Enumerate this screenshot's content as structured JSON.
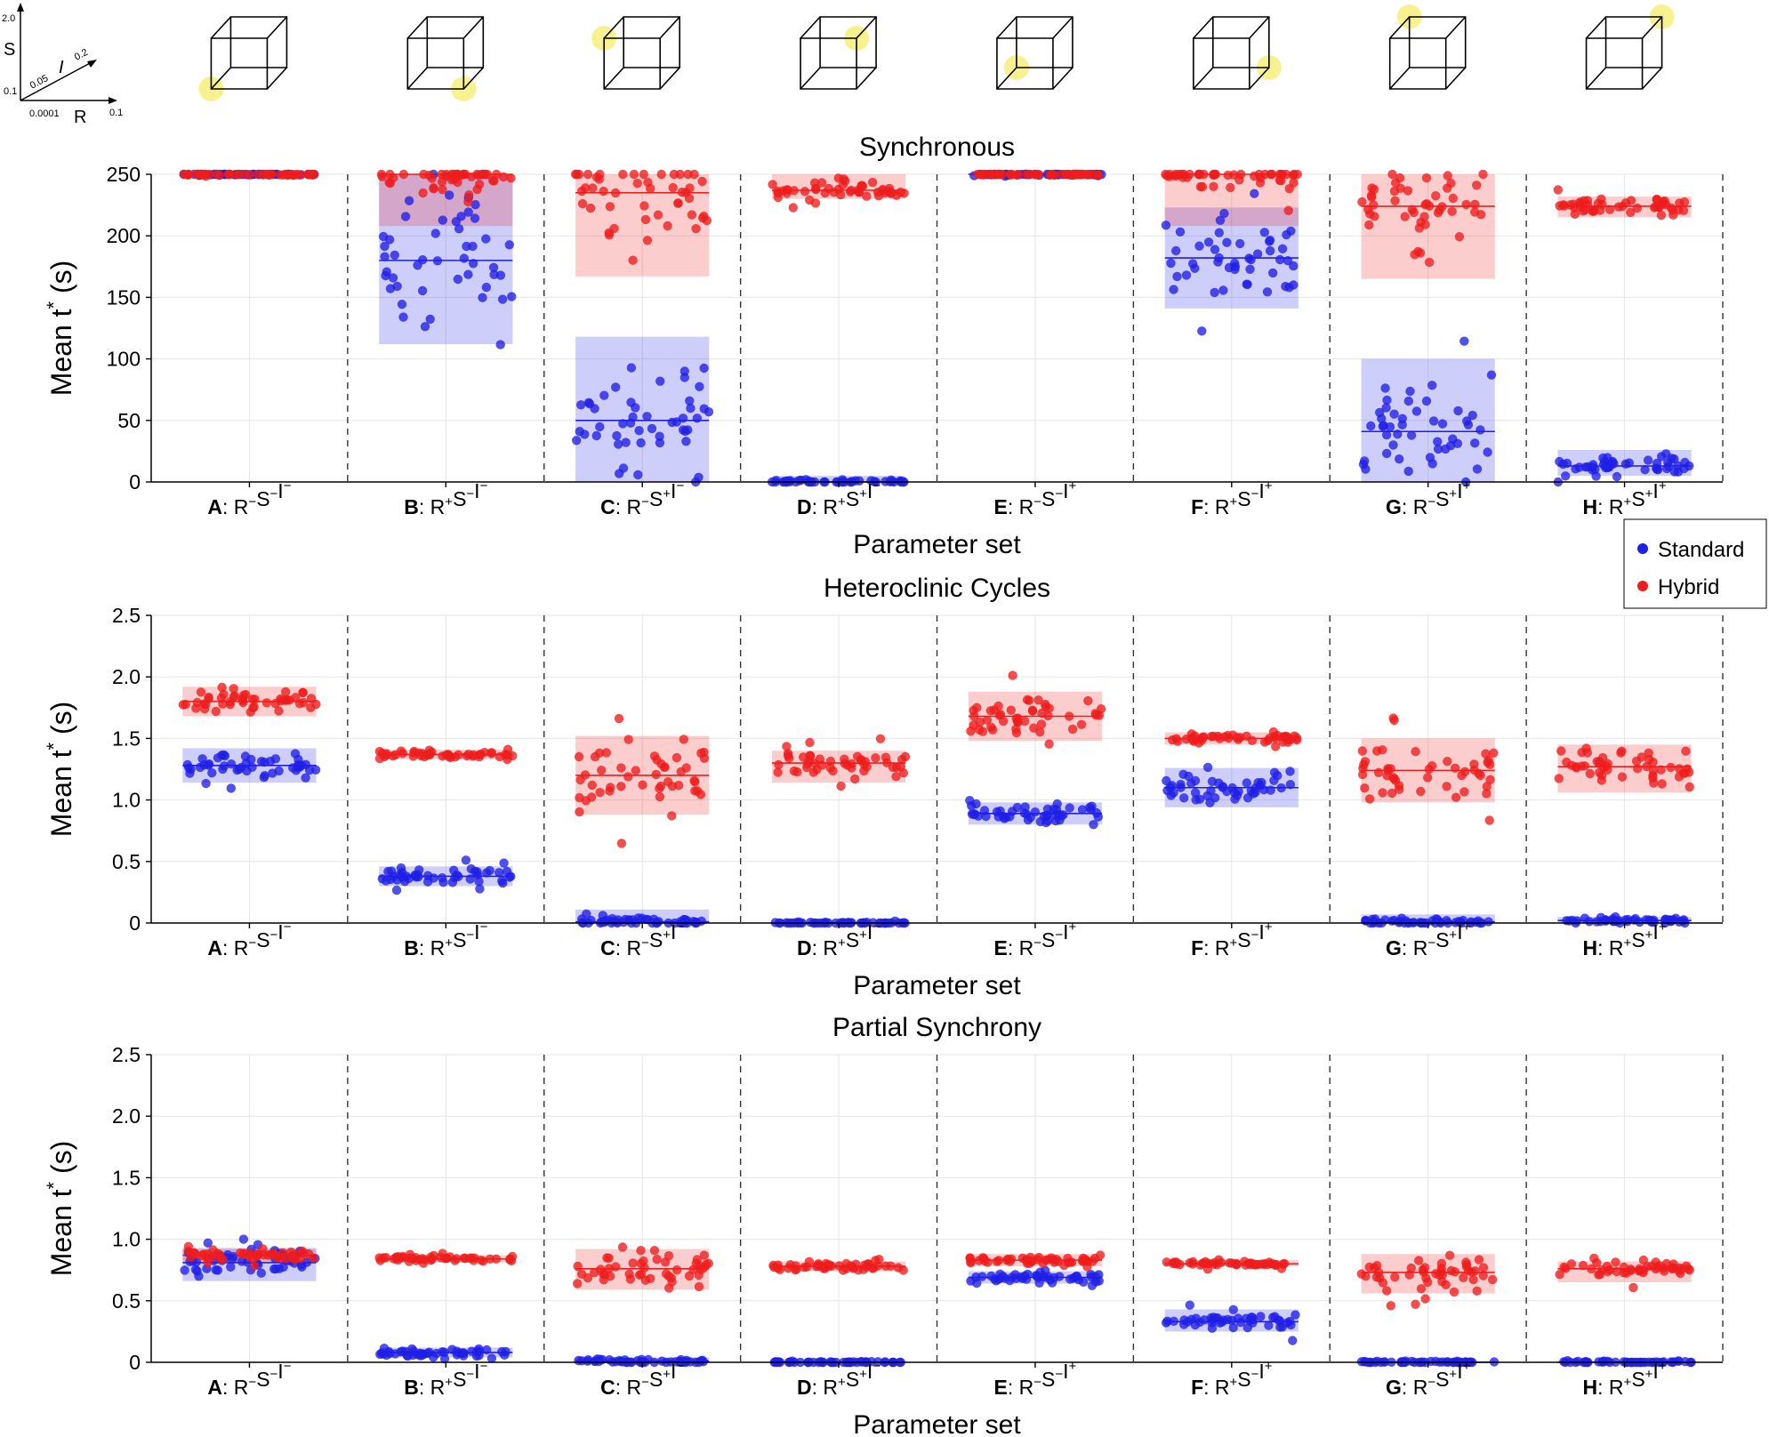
{
  "figure": {
    "xlabel": "Parameter set",
    "ylabel_base": "Mean t",
    "ylabel_sup": "*",
    "ylabel_unit": "(s)"
  },
  "axes_key": {
    "s_label": "S",
    "r_label": "R",
    "i_label": "I",
    "s_max": "2.0",
    "s_min": "0.1",
    "r_min": "0.0001",
    "r_max": "0.1",
    "i_min": "0.05",
    "i_max": "0.2"
  },
  "categories": [
    {
      "letter": "A",
      "r": "−",
      "s": "−",
      "i": "−"
    },
    {
      "letter": "B",
      "r": "+",
      "s": "−",
      "i": "−"
    },
    {
      "letter": "C",
      "r": "−",
      "s": "+",
      "i": "−"
    },
    {
      "letter": "D",
      "r": "+",
      "s": "+",
      "i": "−"
    },
    {
      "letter": "E",
      "r": "−",
      "s": "−",
      "i": "+"
    },
    {
      "letter": "F",
      "r": "+",
      "s": "−",
      "i": "+"
    },
    {
      "letter": "G",
      "r": "−",
      "s": "+",
      "i": "+"
    },
    {
      "letter": "H",
      "r": "+",
      "s": "+",
      "i": "+"
    }
  ],
  "cube_corners": [
    "origin",
    "R",
    "S",
    "R+S",
    "I",
    "R+I",
    "S+I",
    "R+S+I"
  ],
  "legend": [
    {
      "name": "Standard",
      "color": "#1f1fe6"
    },
    {
      "name": "Hybrid",
      "color": "#ee1c1c"
    }
  ],
  "chart_data": [
    {
      "type": "scatter",
      "title": "Synchronous",
      "xlabel": "Parameter set",
      "ylabel": "Mean t* (s)",
      "ylim": [
        0,
        250
      ],
      "yticks": [
        "0",
        "50",
        "100",
        "150",
        "200",
        "250"
      ],
      "series": [
        {
          "name": "Standard",
          "mean": [
            250,
            180,
            50,
            0,
            250,
            182,
            41,
            13
          ],
          "band": [
            [
              250,
              250
            ],
            [
              112,
              250
            ],
            [
              0,
              118
            ],
            [
              0,
              5
            ],
            [
              250,
              250
            ],
            [
              141,
              223
            ],
            [
              0,
              100
            ],
            [
              5,
              26
            ]
          ]
        },
        {
          "name": "Hybrid",
          "mean": [
            250,
            250,
            235,
            237,
            250,
            250,
            224,
            224
          ],
          "band": [
            [
              250,
              250
            ],
            [
              208,
              250
            ],
            [
              167,
              250
            ],
            [
              230,
              250
            ],
            [
              250,
              250
            ],
            [
              208,
              250
            ],
            [
              165,
              250
            ],
            [
              215,
              232
            ]
          ]
        }
      ]
    },
    {
      "type": "scatter",
      "title": "Heteroclinic Cycles",
      "xlabel": "Parameter set",
      "ylabel": "Mean t* (s)",
      "ylim": [
        0,
        2.5
      ],
      "yticks": [
        "0",
        "0.5",
        "1.0",
        "1.5",
        "2.0",
        "2.5"
      ],
      "series": [
        {
          "name": "Standard",
          "mean": [
            1.28,
            0.38,
            0.01,
            0.0,
            0.89,
            1.1,
            0.01,
            0.02
          ],
          "band": [
            [
              1.14,
              1.42
            ],
            [
              0.3,
              0.46
            ],
            [
              0.0,
              0.11
            ],
            [
              0.0,
              0.01
            ],
            [
              0.8,
              0.98
            ],
            [
              0.94,
              1.26
            ],
            [
              0.0,
              0.07
            ],
            [
              0.0,
              0.05
            ]
          ]
        },
        {
          "name": "Hybrid",
          "mean": [
            1.8,
            1.37,
            1.2,
            1.3,
            1.68,
            1.5,
            1.24,
            1.27
          ],
          "band": [
            [
              1.68,
              1.92
            ],
            [
              1.33,
              1.41
            ],
            [
              0.88,
              1.52
            ],
            [
              1.14,
              1.4
            ],
            [
              1.48,
              1.88
            ],
            [
              1.45,
              1.55
            ],
            [
              0.98,
              1.5
            ],
            [
              1.06,
              1.45
            ]
          ]
        }
      ]
    },
    {
      "type": "scatter",
      "title": "Partial Synchrony",
      "xlabel": "Parameter set",
      "ylabel": "Mean t* (s)",
      "ylim": [
        0,
        2.5
      ],
      "yticks": [
        "0",
        "0.5",
        "1.0",
        "1.5",
        "2.0",
        "2.5"
      ],
      "series": [
        {
          "name": "Standard",
          "mean": [
            0.81,
            0.08,
            0.01,
            0.0,
            0.69,
            0.33,
            0.0,
            0.0
          ],
          "band": [
            [
              0.66,
              0.93
            ],
            [
              0.04,
              0.12
            ],
            [
              0.0,
              0.04
            ],
            [
              0.0,
              0.01
            ],
            [
              0.64,
              0.74
            ],
            [
              0.25,
              0.43
            ],
            [
              0.0,
              0.01
            ],
            [
              0.0,
              0.01
            ]
          ]
        },
        {
          "name": "Hybrid",
          "mean": [
            0.87,
            0.84,
            0.76,
            0.78,
            0.83,
            0.8,
            0.73,
            0.76
          ],
          "band": [
            [
              0.82,
              0.92
            ],
            [
              0.81,
              0.87
            ],
            [
              0.59,
              0.92
            ],
            [
              0.74,
              0.82
            ],
            [
              0.78,
              0.88
            ],
            [
              0.78,
              0.83
            ],
            [
              0.56,
              0.88
            ],
            [
              0.65,
              0.82
            ]
          ]
        }
      ]
    }
  ]
}
